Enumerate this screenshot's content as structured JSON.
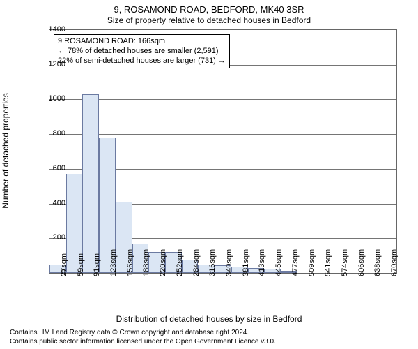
{
  "title_line1": "9, ROSAMOND ROAD, BEDFORD, MK40 3SR",
  "title_line2": "Size of property relative to detached houses in Bedford",
  "y_axis_label": "Number of detached properties",
  "x_axis_label": "Distribution of detached houses by size in Bedford",
  "chart": {
    "type": "histogram",
    "ylim": [
      0,
      1400
    ],
    "ytick_step": 200,
    "yticks": [
      0,
      200,
      400,
      600,
      800,
      1000,
      1200,
      1400
    ],
    "x_categories": [
      "27sqm",
      "59sqm",
      "91sqm",
      "123sqm",
      "156sqm",
      "188sqm",
      "220sqm",
      "252sqm",
      "284sqm",
      "316sqm",
      "349sqm",
      "381sqm",
      "413sqm",
      "445sqm",
      "477sqm",
      "509sqm",
      "541sqm",
      "574sqm",
      "606sqm",
      "638sqm",
      "670sqm"
    ],
    "values": [
      50,
      570,
      1030,
      780,
      410,
      170,
      120,
      120,
      75,
      50,
      45,
      35,
      30,
      25,
      12,
      0,
      0,
      0,
      0,
      0,
      0
    ],
    "bar_fill": "#dbe6f4",
    "bar_stroke": "#6b7aa1",
    "bar_width_ratio": 1.0,
    "grid_color": "#666666",
    "background_color": "#ffffff",
    "marker_value": 166,
    "marker_color": "#c40000",
    "x_range": [
      27,
      670
    ],
    "title_fontsize": 13,
    "subtitle_fontsize": 12,
    "axis_label_fontsize": 12,
    "tick_fontsize": 11,
    "annotation_fontsize": 11
  },
  "annotation": {
    "line1": "9 ROSAMOND ROAD: 166sqm",
    "line2": "← 78% of detached houses are smaller (2,591)",
    "line3": "22% of semi-detached houses are larger (731) →"
  },
  "footer": {
    "line1": "Contains HM Land Registry data © Crown copyright and database right 2024.",
    "line2": "Contains public sector information licensed under the Open Government Licence v3.0."
  }
}
